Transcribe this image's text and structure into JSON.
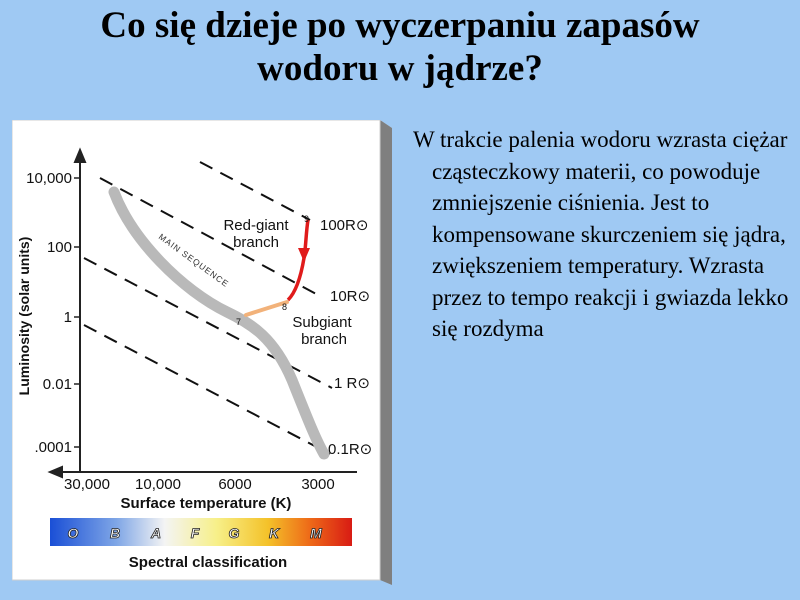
{
  "slide": {
    "title_line1": "Co się dzieje po wyczerpaniu zapasów",
    "title_line2": "wodoru w jądrze?",
    "body": "W trakcie palenia wodoru wzrasta ciężar cząsteczkowy materii, co powoduje zmniejszenie ciśnienia. Jest to kompensowane skurczeniem się jądra, zwiększeniem temperatury. Wzrasta przez to tempo reakcji i gwiazda lekko się rozdyma"
  },
  "chart_data": {
    "type": "line",
    "ylabel": "Luminosity (solar units)",
    "xlabel": "Surface temperature (K)",
    "y_ticks": [
      "10,000",
      "100",
      "1",
      "0.01",
      ".0001"
    ],
    "x_ticks": [
      "30,000",
      "10,000",
      "6000",
      "3000"
    ],
    "radius_lines": [
      "100R⊙",
      "10R⊙",
      "1 R⊙",
      "0.1R⊙"
    ],
    "annotations": {
      "main_sequence": "MAIN SEQUENCE",
      "red_giant_1": "Red-giant",
      "red_giant_2": "branch",
      "subgiant_1": "Subgiant",
      "subgiant_2": "branch",
      "point_7": "7",
      "point_8": "8",
      "point_9": "9"
    },
    "spectral_classes": [
      "O",
      "B",
      "A",
      "F",
      "G",
      "K",
      "M"
    ],
    "spectral_label": "Spectral classification",
    "track_points": [
      {
        "label": "7",
        "temperature": 5800,
        "luminosity": 1
      },
      {
        "label": "8",
        "temperature": 4500,
        "luminosity": 3
      },
      {
        "label": "9",
        "temperature": 3800,
        "luminosity": 300
      }
    ],
    "colors": {
      "main_sequence": "#b7b7b7",
      "subgiant_track": "#f2b27a",
      "red_giant_track": "#e01b1b",
      "background": "#ffffff"
    }
  }
}
